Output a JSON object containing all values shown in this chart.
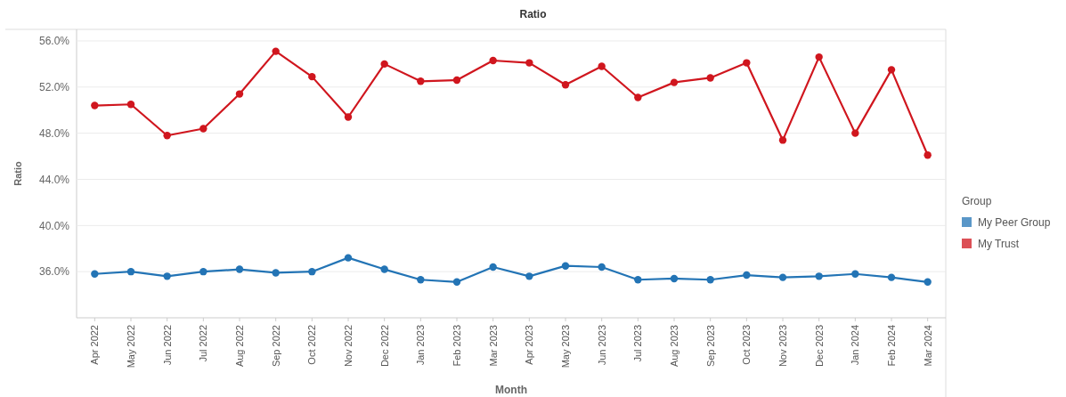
{
  "chart_data": {
    "type": "line",
    "title": "Ratio",
    "xlabel": "Month",
    "ylabel": "Ratio",
    "categories": [
      "Apr 2022",
      "May 2022",
      "Jun 2022",
      "Jul 2022",
      "Aug 2022",
      "Sep 2022",
      "Oct 2022",
      "Nov 2022",
      "Dec 2022",
      "Jan 2023",
      "Feb 2023",
      "Mar 2023",
      "Apr 2023",
      "May 2023",
      "Jun 2023",
      "Jul 2023",
      "Aug 2023",
      "Sep 2023",
      "Oct 2023",
      "Nov 2023",
      "Dec 2023",
      "Jan 2024",
      "Feb 2024",
      "Mar 2024"
    ],
    "series": [
      {
        "name": "My Peer Group",
        "color": "#2374b5",
        "values": [
          35.8,
          36.0,
          35.6,
          36.0,
          36.2,
          35.9,
          36.0,
          37.2,
          36.2,
          35.3,
          35.1,
          36.4,
          35.6,
          36.5,
          36.4,
          35.3,
          35.4,
          35.3,
          35.7,
          35.5,
          35.6,
          35.8,
          35.5,
          35.1
        ]
      },
      {
        "name": "My Trust",
        "color": "#d0161e",
        "values": [
          50.4,
          50.5,
          47.8,
          48.4,
          51.4,
          55.1,
          52.9,
          49.4,
          54.0,
          52.5,
          52.6,
          54.3,
          54.1,
          52.2,
          53.8,
          51.1,
          52.4,
          52.8,
          54.1,
          47.4,
          54.6,
          48.0,
          53.5,
          46.1
        ]
      }
    ],
    "ylim": [
      32,
      57
    ],
    "yticks": [
      {
        "value": 36,
        "label": "36.0%"
      },
      {
        "value": 40,
        "label": "40.0%"
      },
      {
        "value": 44,
        "label": "44.0%"
      },
      {
        "value": 48,
        "label": "48.0%"
      },
      {
        "value": 52,
        "label": "52.0%"
      },
      {
        "value": 56,
        "label": "56.0%"
      }
    ],
    "grid": "y",
    "legend": "right",
    "legend_title": "Group",
    "marker": "circle",
    "line_style": "solid"
  }
}
